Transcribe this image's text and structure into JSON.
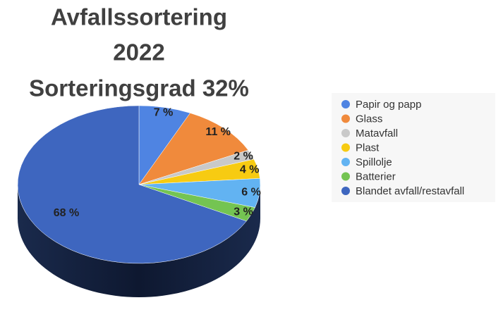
{
  "chart_data": {
    "type": "pie",
    "title": [
      "Avfallssortering",
      "2022",
      "Sorteringsgrad 32%"
    ],
    "categories": [
      "Papir og papp",
      "Glass",
      "Matavfall",
      "Plast",
      "Spillolje",
      "Batterier",
      "Blandet avfall/restavfall"
    ],
    "values": [
      7,
      11,
      2,
      4,
      6,
      3,
      68
    ],
    "value_labels": [
      "7 %",
      "11 %",
      "2 %",
      "4 %",
      "6 %",
      "3 %",
      "68 %"
    ],
    "colors": [
      "#4f84e2",
      "#f08a3c",
      "#c9c9c9",
      "#f7cb12",
      "#62b3f2",
      "#74c452",
      "#3e66bf"
    ],
    "legend": "right"
  }
}
